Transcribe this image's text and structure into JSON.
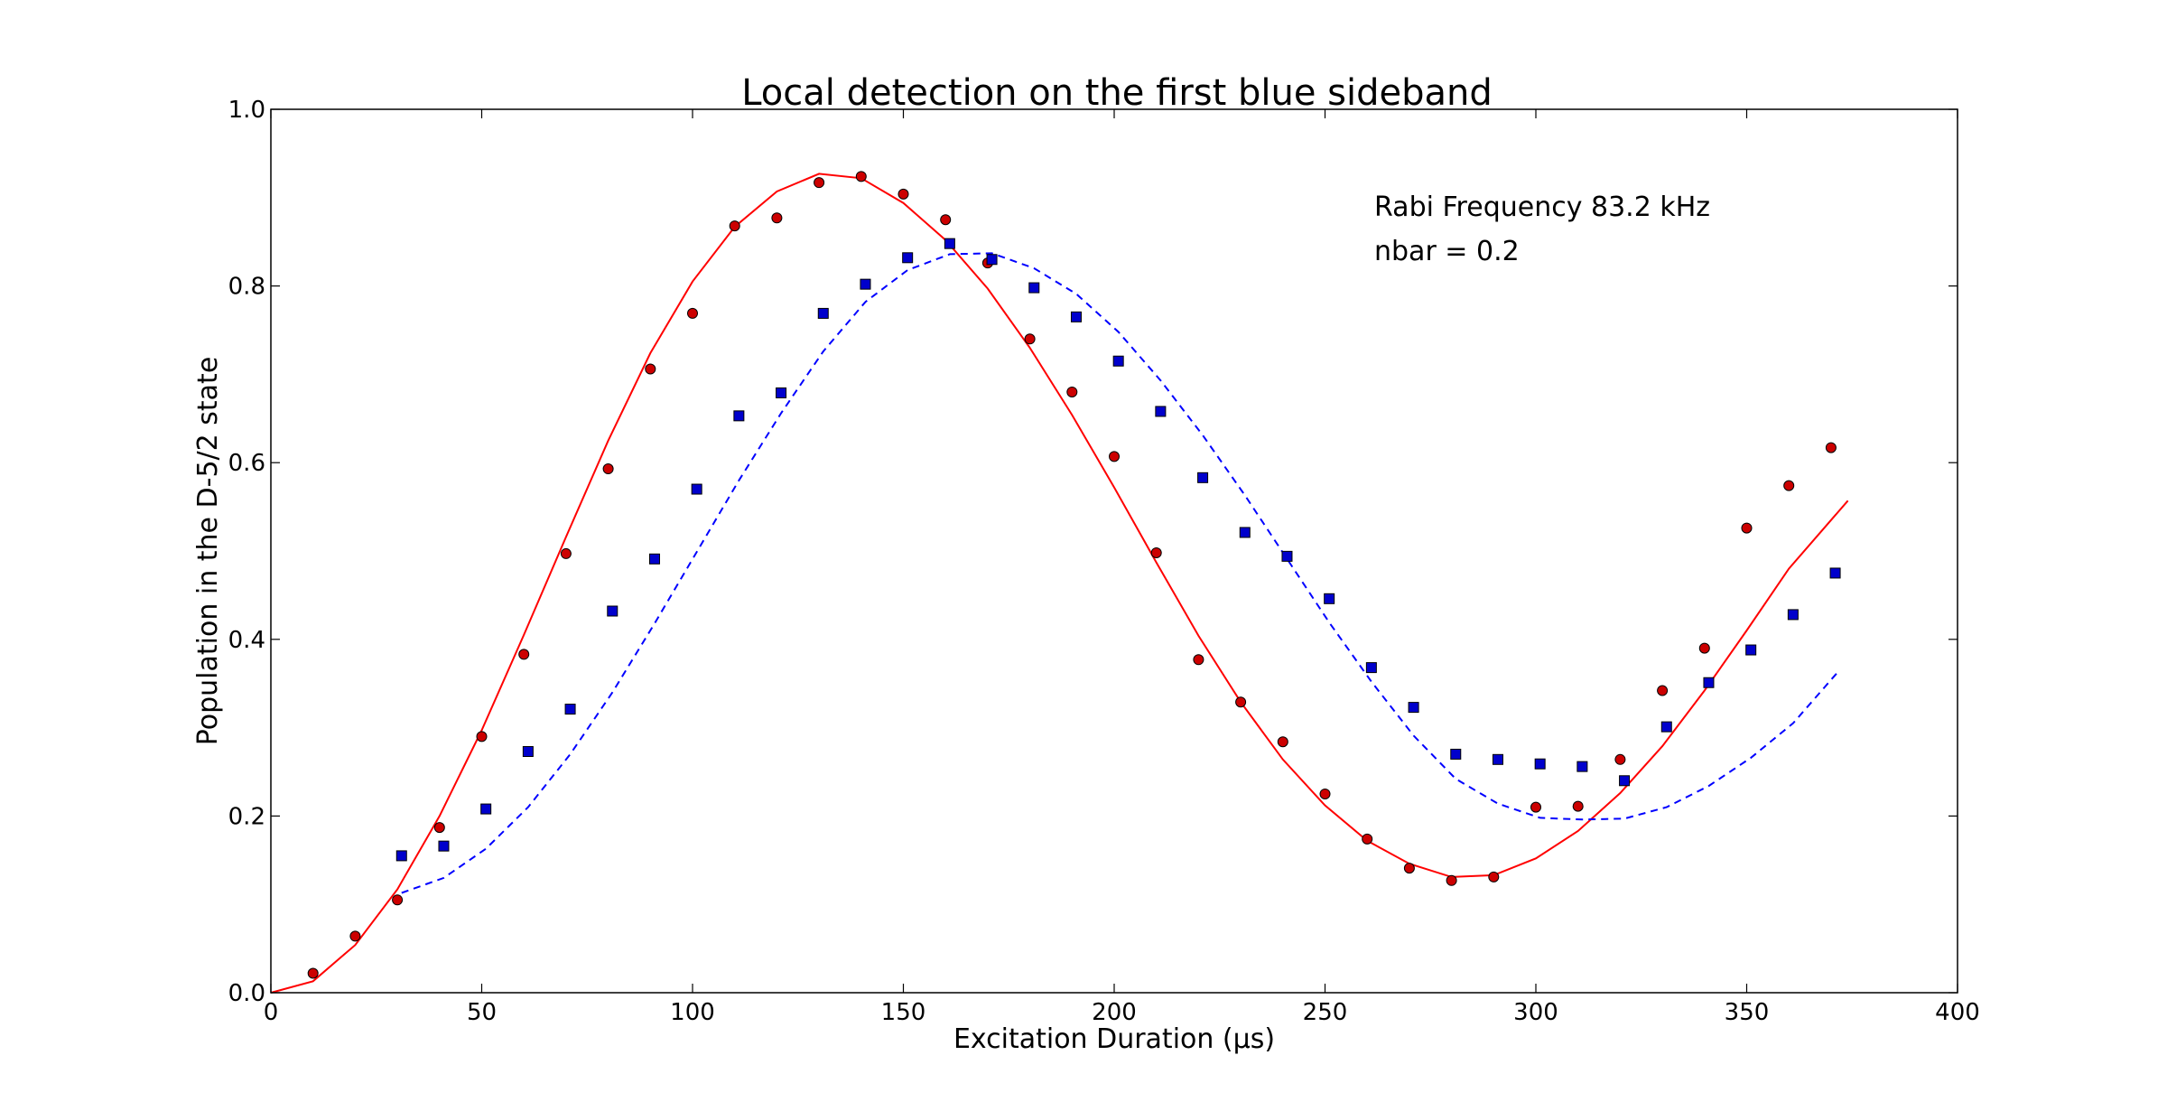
{
  "chart_data": {
    "type": "scatter",
    "title": "Local detection on the first blue sideband",
    "xlabel": "Excitation Duration (μs)",
    "ylabel": "Population in the D-5/2 state",
    "xlim": [
      0,
      400
    ],
    "ylim": [
      0,
      1.0
    ],
    "xticks": [
      0,
      50,
      100,
      150,
      200,
      250,
      300,
      350,
      400
    ],
    "yticks": [
      0.0,
      0.2,
      0.4,
      0.6,
      0.8,
      1.0
    ],
    "xtick_labels": [
      "0",
      "50",
      "100",
      "150",
      "200",
      "250",
      "300",
      "350",
      "400"
    ],
    "ytick_labels": [
      "0.0",
      "0.2",
      "0.4",
      "0.6",
      "0.8",
      "1.0"
    ],
    "grid": false,
    "annotations": [
      "Rabi Frequency 83.2 kHz",
      "nbar = 0.2"
    ],
    "colors": {
      "red": "#ff0000",
      "red_marker": "#cc0000",
      "blue": "#0000ff",
      "blue_marker": "#0000cc"
    },
    "series": [
      {
        "kind": "points",
        "marker": "circle",
        "color": "#cc0000",
        "x": [
          10,
          20,
          30,
          40,
          50,
          60,
          70,
          80,
          90,
          100,
          110,
          120,
          130,
          140,
          150,
          160,
          170,
          180,
          190,
          200,
          210,
          220,
          230,
          240,
          250,
          260,
          270,
          280,
          290,
          300,
          310,
          320,
          330,
          340,
          350,
          360,
          370
        ],
        "y": [
          0.022,
          0.064,
          0.105,
          0.187,
          0.29,
          0.383,
          0.497,
          0.593,
          0.706,
          0.769,
          0.868,
          0.877,
          0.917,
          0.924,
          0.904,
          0.875,
          0.826,
          0.74,
          0.68,
          0.607,
          0.498,
          0.377,
          0.329,
          0.284,
          0.225,
          0.174,
          0.141,
          0.127,
          0.131,
          0.21,
          0.211,
          0.264,
          0.342,
          0.39,
          0.526,
          0.574,
          0.617
        ]
      },
      {
        "kind": "points",
        "marker": "square",
        "color": "#0000cc",
        "x": [
          31,
          41,
          51,
          61,
          71,
          81,
          91,
          101,
          111,
          121,
          131,
          141,
          151,
          161,
          171,
          181,
          191,
          201,
          211,
          221,
          231,
          241,
          251,
          261,
          271,
          281,
          291,
          301,
          311,
          321,
          331,
          341,
          351,
          361,
          371
        ],
        "y": [
          0.155,
          0.166,
          0.208,
          0.273,
          0.321,
          0.432,
          0.491,
          0.57,
          0.653,
          0.679,
          0.769,
          0.802,
          0.832,
          0.848,
          0.83,
          0.798,
          0.765,
          0.715,
          0.658,
          0.583,
          0.521,
          0.494,
          0.446,
          0.368,
          0.323,
          0.27,
          0.264,
          0.259,
          0.256,
          0.24,
          0.301,
          0.351,
          0.388,
          0.428,
          0.475
        ]
      },
      {
        "kind": "line",
        "style": "solid",
        "color": "#ff0000",
        "x": [
          0,
          10,
          20,
          30,
          40,
          50,
          60,
          70,
          80,
          90,
          100,
          110,
          120,
          130,
          140,
          150,
          160,
          170,
          180,
          190,
          200,
          210,
          220,
          230,
          240,
          250,
          260,
          270,
          280,
          290,
          300,
          310,
          320,
          330,
          340,
          350,
          360,
          374
        ],
        "y": [
          0.0,
          0.013,
          0.054,
          0.117,
          0.2,
          0.297,
          0.405,
          0.516,
          0.625,
          0.724,
          0.805,
          0.867,
          0.907,
          0.927,
          0.922,
          0.894,
          0.852,
          0.797,
          0.73,
          0.654,
          0.572,
          0.487,
          0.404,
          0.329,
          0.264,
          0.212,
          0.172,
          0.146,
          0.131,
          0.133,
          0.152,
          0.183,
          0.226,
          0.279,
          0.342,
          0.41,
          0.48,
          0.557
        ]
      },
      {
        "kind": "line",
        "style": "dashed",
        "color": "#0000ff",
        "x": [
          31,
          41,
          51,
          61,
          71,
          81,
          91,
          101,
          111,
          121,
          131,
          141,
          151,
          161,
          171,
          181,
          191,
          201,
          211,
          221,
          231,
          241,
          251,
          261,
          271,
          281,
          291,
          301,
          311,
          321,
          331,
          341,
          351,
          361,
          372
        ],
        "y": [
          0.113,
          0.13,
          0.163,
          0.21,
          0.27,
          0.34,
          0.418,
          0.499,
          0.58,
          0.656,
          0.726,
          0.782,
          0.818,
          0.836,
          0.837,
          0.82,
          0.791,
          0.748,
          0.693,
          0.631,
          0.563,
          0.491,
          0.419,
          0.352,
          0.291,
          0.242,
          0.214,
          0.198,
          0.196,
          0.197,
          0.21,
          0.234,
          0.266,
          0.305,
          0.365
        ]
      }
    ]
  }
}
